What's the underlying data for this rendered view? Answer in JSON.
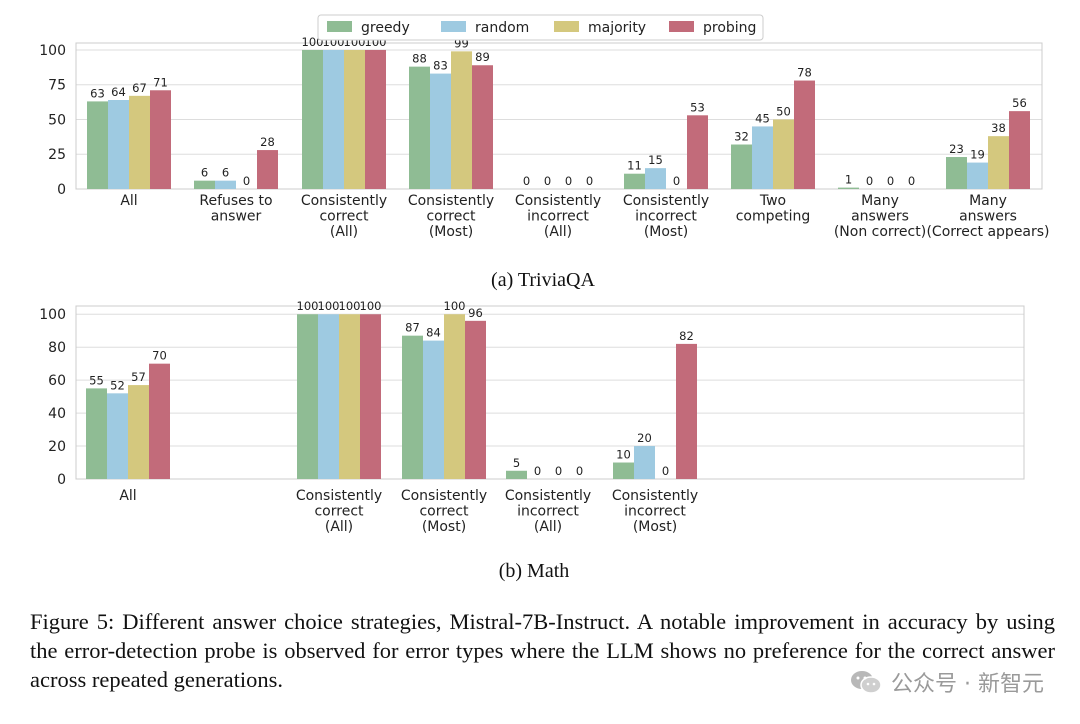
{
  "colors": {
    "greedy": "#8fbc94",
    "random": "#9ecae1",
    "majority": "#d4c87e",
    "probing": "#c26b7a"
  },
  "legend": [
    "greedy",
    "random",
    "majority",
    "probing"
  ],
  "chart_data": [
    {
      "type": "bar",
      "subtitle": "(a) TriviaQA",
      "legend_position": "top-center",
      "grid": true,
      "ylim": [
        0,
        105
      ],
      "yticks": [
        0,
        25,
        50,
        75,
        100
      ],
      "categories": [
        [
          "All"
        ],
        [
          "Refuses to",
          "answer"
        ],
        [
          "Consistently",
          "correct",
          "(All)"
        ],
        [
          "Consistently",
          "correct",
          "(Most)"
        ],
        [
          "Consistently",
          "incorrect",
          "(All)"
        ],
        [
          "Consistently",
          "incorrect",
          "(Most)"
        ],
        [
          "Two",
          "competing"
        ],
        [
          "Many",
          "answers",
          "(Non correct)"
        ],
        [
          "Many",
          "answers",
          "(Correct appears)"
        ]
      ],
      "series": [
        {
          "name": "greedy",
          "values": [
            63,
            6,
            100,
            88,
            0,
            11,
            32,
            1,
            23
          ]
        },
        {
          "name": "random",
          "values": [
            64,
            6,
            100,
            83,
            0,
            15,
            45,
            0,
            19
          ]
        },
        {
          "name": "majority",
          "values": [
            67,
            0,
            100,
            99,
            0,
            0,
            50,
            0,
            38
          ]
        },
        {
          "name": "probing",
          "values": [
            71,
            28,
            100,
            89,
            0,
            53,
            78,
            0,
            56
          ]
        }
      ]
    },
    {
      "type": "bar",
      "subtitle": "(b) Math",
      "grid": true,
      "ylim": [
        0,
        105
      ],
      "yticks": [
        0,
        20,
        40,
        60,
        80,
        100
      ],
      "categories": [
        [
          "All"
        ],
        [],
        [
          "Consistently",
          "correct",
          "(All)"
        ],
        [
          "Consistently",
          "correct",
          "(Most)"
        ],
        [
          "Consistently",
          "incorrect",
          "(All)"
        ],
        [
          "Consistently",
          "incorrect",
          "(Most)"
        ],
        [],
        [],
        []
      ],
      "series": [
        {
          "name": "greedy",
          "values": [
            55,
            null,
            100,
            87,
            5,
            10,
            null,
            null,
            null
          ]
        },
        {
          "name": "random",
          "values": [
            52,
            null,
            100,
            84,
            0,
            20,
            null,
            null,
            null
          ]
        },
        {
          "name": "majority",
          "values": [
            57,
            null,
            100,
            100,
            0,
            0,
            null,
            null,
            null
          ]
        },
        {
          "name": "probing",
          "values": [
            70,
            null,
            100,
            96,
            0,
            82,
            null,
            null,
            null
          ]
        }
      ]
    }
  ],
  "caption": "Figure 5: Different answer choice strategies, Mistral-7B-Instruct. A notable improvement in accuracy by using the error-detection probe is observed for error types where the LLM shows no preference for the correct answer across repeated generations.",
  "watermark": "公众号 · 新智元"
}
